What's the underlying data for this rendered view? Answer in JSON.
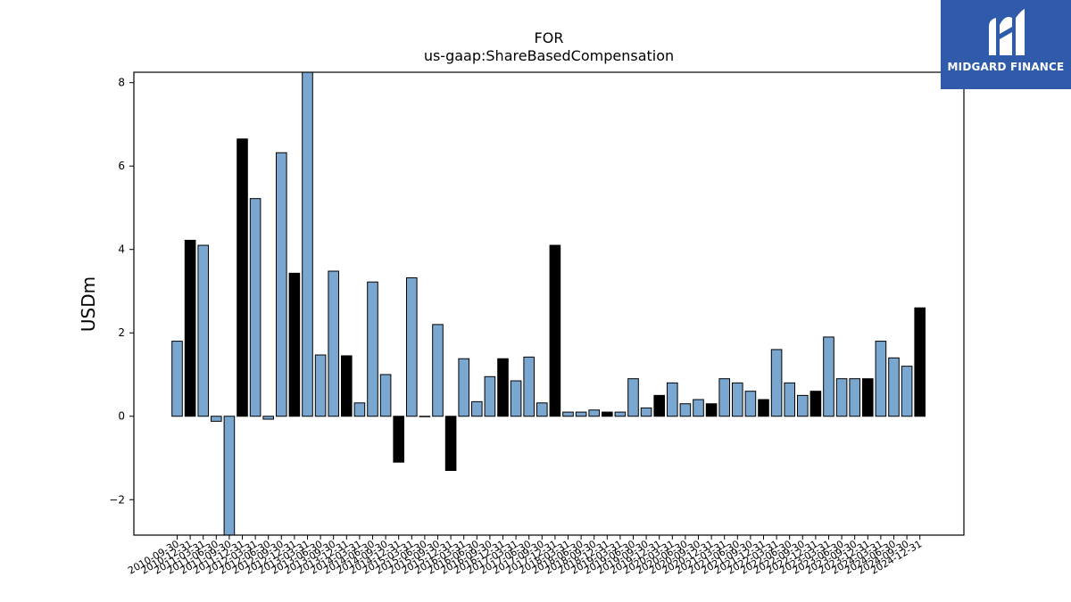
{
  "chart_data": {
    "type": "bar",
    "title": "FOR",
    "subtitle": "us-gaap:ShareBasedCompensation",
    "xlabel": "",
    "ylabel": "USDm",
    "ylim": [
      -2.85,
      8.25
    ],
    "yticks": [
      -2,
      0,
      2,
      4,
      6,
      8
    ],
    "grid": false,
    "colors": {
      "quarter": "#7aa7cf",
      "annual": "#000000",
      "edge": "#000000"
    },
    "categories": [
      "2010-09-30",
      "2010-12-31",
      "2011-03-31",
      "2011-06-30",
      "2011-09-30",
      "2011-12-31",
      "2012-03-31",
      "2012-06-30",
      "2012-09-30",
      "2012-12-31",
      "2013-03-31",
      "2013-06-30",
      "2013-09-30",
      "2013-12-31",
      "2014-03-31",
      "2014-06-30",
      "2014-09-30",
      "2014-12-31",
      "2015-03-31",
      "2015-06-30",
      "2015-09-30",
      "2015-12-31",
      "2016-03-31",
      "2016-06-30",
      "2016-09-30",
      "2016-12-31",
      "2017-03-31",
      "2017-06-30",
      "2017-09-30",
      "2017-12-31",
      "2018-03-31",
      "2018-06-30",
      "2018-09-30",
      "2018-12-31",
      "2019-03-31",
      "2019-06-30",
      "2019-09-30",
      "2019-12-31",
      "2020-03-31",
      "2020-06-30",
      "2020-09-30",
      "2020-12-31",
      "2021-03-31",
      "2021-06-30",
      "2021-09-30",
      "2021-12-31",
      "2022-03-31",
      "2022-06-30",
      "2022-09-30",
      "2022-12-31",
      "2023-03-31",
      "2023-06-30",
      "2023-09-30",
      "2023-12-31",
      "2024-03-31",
      "2024-06-30",
      "2024-09-30",
      "2024-12-31"
    ],
    "values": [
      1.8,
      4.22,
      4.1,
      -0.12,
      -2.9,
      6.65,
      5.22,
      -0.07,
      6.32,
      3.43,
      8.3,
      1.47,
      3.48,
      1.45,
      0.32,
      3.22,
      1.0,
      -1.1,
      3.32,
      0.0,
      2.2,
      -1.3,
      1.38,
      0.35,
      0.95,
      1.38,
      0.85,
      1.42,
      0.32,
      4.1,
      0.1,
      0.1,
      0.15,
      0.1,
      0.1,
      0.9,
      0.2,
      0.5,
      0.8,
      0.3,
      0.4,
      0.3,
      0.9,
      0.8,
      0.6,
      0.4,
      1.6,
      0.8,
      0.5,
      0.6,
      1.9,
      0.9,
      0.9,
      0.9,
      1.8,
      1.4,
      1.2,
      2.6
    ],
    "annual": [
      false,
      true,
      false,
      false,
      false,
      true,
      false,
      false,
      false,
      true,
      false,
      false,
      false,
      true,
      false,
      false,
      false,
      true,
      false,
      false,
      false,
      true,
      false,
      false,
      false,
      true,
      false,
      false,
      false,
      true,
      false,
      false,
      false,
      true,
      false,
      false,
      false,
      true,
      false,
      false,
      false,
      true,
      false,
      false,
      false,
      true,
      false,
      false,
      false,
      true,
      false,
      false,
      false,
      true,
      false,
      false,
      false,
      true
    ]
  },
  "logo": {
    "text": "MIDGARD FINANCE"
  }
}
